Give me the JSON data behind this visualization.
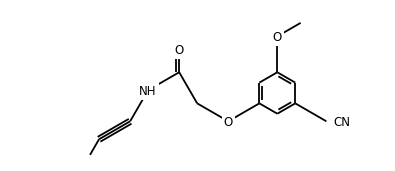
{
  "background_color": "#ffffff",
  "line_color": "#000000",
  "line_width": 1.3,
  "font_size": 8.5,
  "figsize": [
    3.95,
    1.71
  ],
  "dpi": 100,
  "xlim": [
    0,
    7.8
  ],
  "ylim": [
    0,
    3.4
  ]
}
